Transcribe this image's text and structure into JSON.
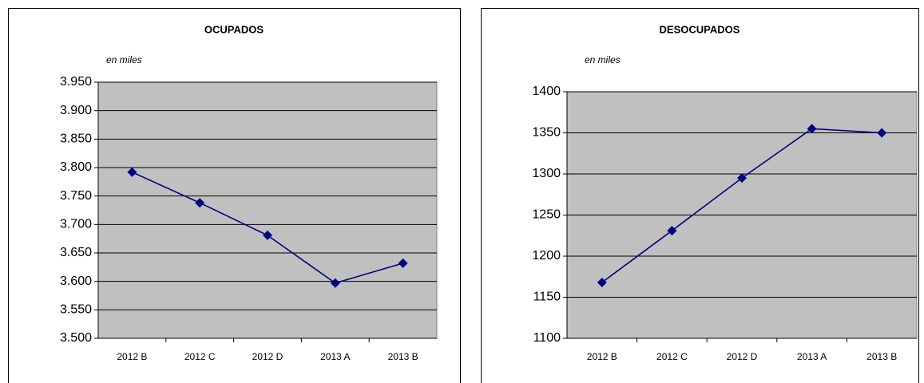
{
  "chart_data": [
    {
      "type": "line",
      "title": "OCUPADOS",
      "subtitle": "en miles",
      "categories": [
        "2012 B",
        "2012 C",
        "2012 D",
        "2013 A",
        "2013 B"
      ],
      "series": [
        {
          "name": "Ocupados",
          "color": "#000080",
          "values": [
            3792,
            3738,
            3681,
            3597,
            3632
          ]
        }
      ],
      "ylim": [
        3500,
        3950
      ],
      "yticks": [
        {
          "value": 3500,
          "label": "3.500"
        },
        {
          "value": 3550,
          "label": "3.550"
        },
        {
          "value": 3600,
          "label": "3.600"
        },
        {
          "value": 3650,
          "label": "3.650"
        },
        {
          "value": 3700,
          "label": "3.700"
        },
        {
          "value": 3750,
          "label": "3.750"
        },
        {
          "value": 3800,
          "label": "3.800"
        },
        {
          "value": 3850,
          "label": "3.850"
        },
        {
          "value": 3900,
          "label": "3.900"
        },
        {
          "value": 3950,
          "label": "3.950"
        }
      ],
      "grid": true,
      "plot_background": "#c0c0c0"
    },
    {
      "type": "line",
      "title": "DESOCUPADOS",
      "subtitle": "en miles",
      "categories": [
        "2012 B",
        "2012 C",
        "2012 D",
        "2013 A",
        "2013 B"
      ],
      "series": [
        {
          "name": "Desocupados",
          "color": "#000080",
          "values": [
            1168,
            1231,
            1295,
            1355,
            1350
          ]
        }
      ],
      "ylim": [
        1100,
        1400
      ],
      "yticks": [
        1100,
        1150,
        1200,
        1250,
        1300,
        1350,
        1400
      ],
      "grid": true,
      "plot_background": "#c0c0c0"
    }
  ]
}
